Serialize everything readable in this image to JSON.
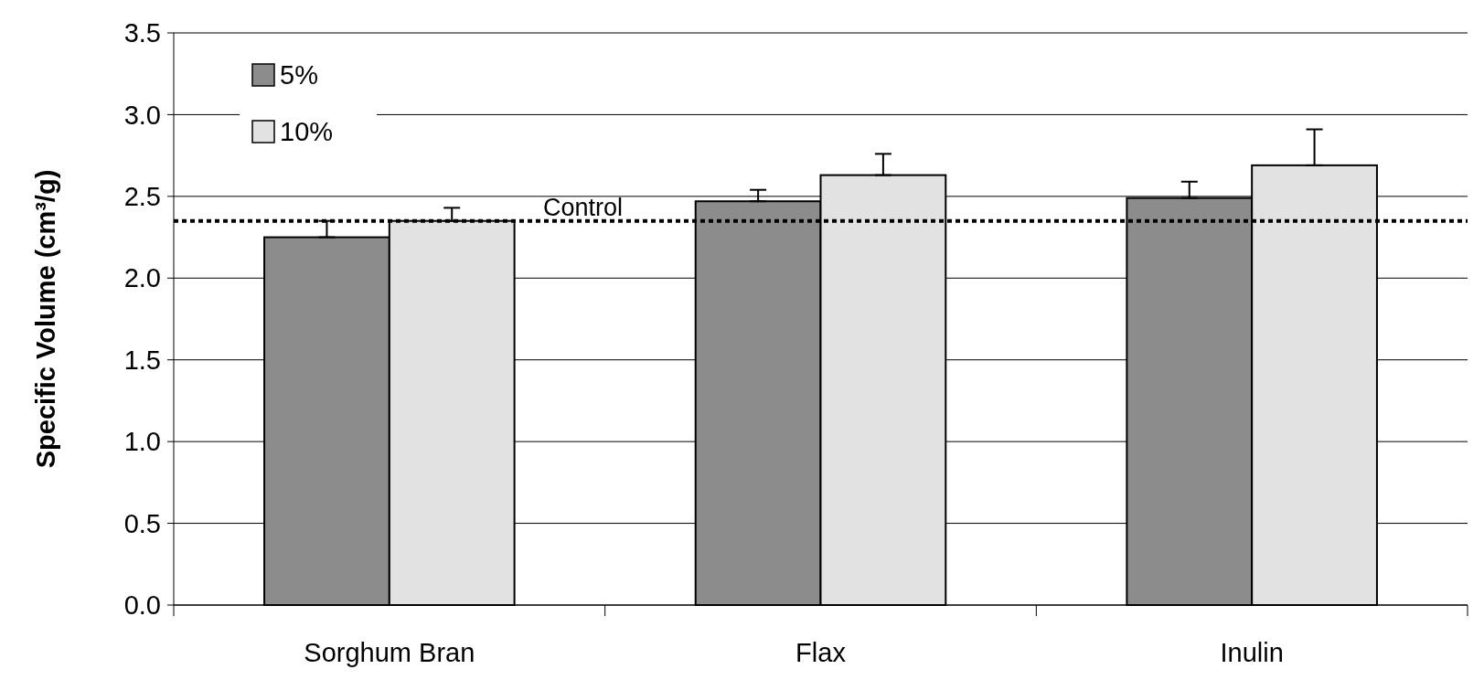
{
  "chart_data": {
    "type": "bar",
    "ylabel": "Specific Volume (cm³/g)",
    "categories": [
      "Sorghum Bran",
      "Flax",
      "Inulin"
    ],
    "series": [
      {
        "name": "5%",
        "color": "#8c8c8c",
        "values": [
          2.25,
          2.47,
          2.49
        ],
        "errors": [
          [
            2.25,
            2.35
          ],
          [
            2.47,
            2.54
          ],
          [
            2.49,
            2.59
          ]
        ]
      },
      {
        "name": "10%",
        "color": "#e2e2e2",
        "values": [
          2.35,
          2.63,
          2.69
        ],
        "errors": [
          [
            2.35,
            2.43
          ],
          [
            2.63,
            2.76
          ],
          [
            2.69,
            2.91
          ]
        ]
      }
    ],
    "ylim": [
      0,
      3.5
    ],
    "yticks": [
      {
        "value": 0,
        "label": "0.0"
      },
      {
        "value": 0.5,
        "label": "0.5"
      },
      {
        "value": 1,
        "label": "1.0"
      },
      {
        "value": 1.5,
        "label": "1.5"
      },
      {
        "value": 2,
        "label": "2.0"
      },
      {
        "value": 2.5,
        "label": "2.5"
      },
      {
        "value": 3,
        "label": "3.0"
      },
      {
        "value": 3.5,
        "label": "3.5"
      }
    ],
    "grid": "y",
    "legend": "top left",
    "ref_lines": [
      {
        "axis": "y",
        "value": 2.35,
        "label": "Control",
        "line_style": "dotted",
        "color": "#000000"
      }
    ]
  }
}
